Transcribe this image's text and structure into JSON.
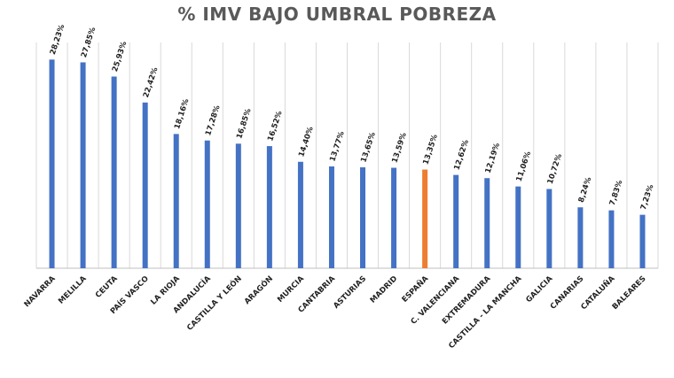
{
  "chart_data": {
    "type": "bar",
    "title": "% IMV BAJO UMBRAL POBREZA",
    "categories": [
      "NAVARRA",
      "MELILLA",
      "CEUTA",
      "PAÍS VASCO",
      "LA RIOJA",
      "ANDALUCÍA",
      "CASTILLA Y LEÓN",
      "ARAGÓN",
      "MURCIA",
      "CANTABRIA",
      "ASTURIAS",
      "MADRID",
      "ESPAÑA",
      "C. VALENCIANA",
      "EXTREMADURA",
      "CASTILLA - LA MANCHA",
      "GALICIA",
      "CANARIAS",
      "CATALUÑA",
      "BALEARES"
    ],
    "values": [
      28.23,
      27.85,
      25.93,
      22.42,
      18.16,
      17.28,
      16.85,
      16.52,
      14.4,
      13.77,
      13.65,
      13.59,
      13.35,
      12.62,
      12.19,
      11.06,
      10.72,
      8.24,
      7.83,
      7.23
    ],
    "value_labels": [
      "28,23%",
      "27,85%",
      "25,93%",
      "22,42%",
      "18,16%",
      "17,28%",
      "16,85%",
      "16,52%",
      "14,40%",
      "13,77%",
      "13,65%",
      "13,59%",
      "13,35%",
      "12,62%",
      "12,19%",
      "11,06%",
      "10,72%",
      "8,24%",
      "7,83%",
      "7,23%"
    ],
    "highlight_category": "ESPAÑA",
    "colors": {
      "bar": "#4472c4",
      "highlight": "#ed7d31",
      "gridline": "#d9d9d9",
      "axis": "#bfbfbf"
    },
    "ylim": [
      0,
      30
    ],
    "grid": "vertical separators",
    "legend": "none",
    "xlabel": "",
    "ylabel": ""
  }
}
